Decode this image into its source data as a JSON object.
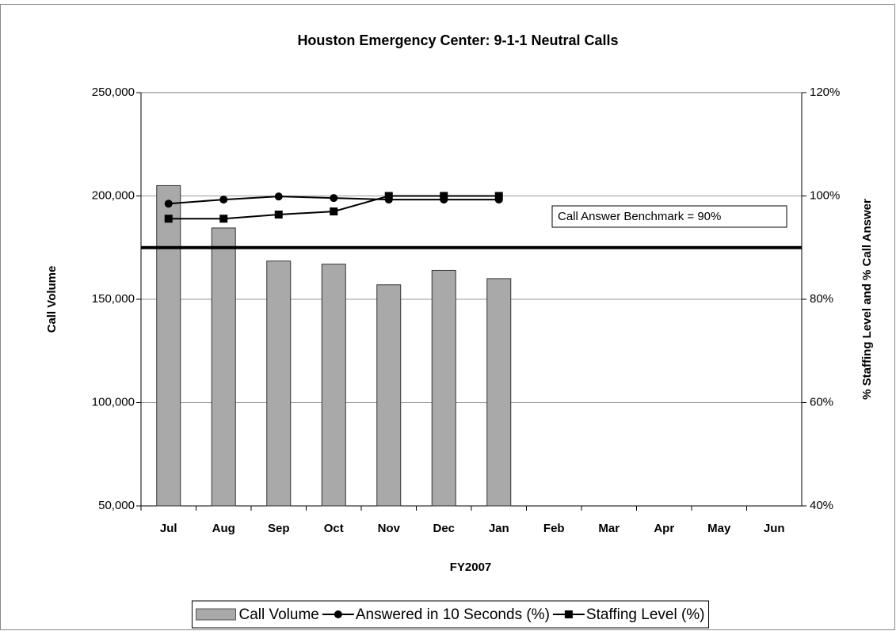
{
  "chart_data": {
    "type": "combo",
    "title": "Houston Emergency Center:  9-1-1 Neutral Calls",
    "x_label": "FY2007",
    "y_label": "Call Volume",
    "y2_label": "% Staffing Level and % Call Answer",
    "categories": [
      "Jul",
      "Aug",
      "Sep",
      "Oct",
      "Nov",
      "Dec",
      "Jan",
      "Feb",
      "Mar",
      "Apr",
      "May",
      "Jun"
    ],
    "series": [
      {
        "name": "Call Volume",
        "type": "bar",
        "color": "#a9a9a9",
        "values": [
          205000,
          184500,
          168500,
          167000,
          157000,
          164000,
          160000,
          null,
          null,
          null,
          null,
          null
        ]
      },
      {
        "name": "Answered in 10 Seconds (%)",
        "type": "line",
        "marker": "circle",
        "axis": "y2",
        "color": "#000000",
        "values": [
          98.5,
          99.3,
          99.9,
          99.6,
          99.3,
          99.3,
          99.3,
          null,
          null,
          null,
          null,
          null
        ]
      },
      {
        "name": "Staffing Level (%)",
        "type": "line",
        "marker": "square",
        "axis": "y2",
        "color": "#000000",
        "values": [
          95.6,
          95.6,
          96.4,
          97.0,
          100,
          100,
          100,
          null,
          null,
          null,
          null,
          null
        ]
      }
    ],
    "benchmark": {
      "label": "Call Answer Benchmark = 90%",
      "value": 90,
      "axis": "y2"
    },
    "ylim": [
      50000,
      250000
    ],
    "yticks": [
      {
        "value": 50000,
        "label": "50,000"
      },
      {
        "value": 100000,
        "label": "100,000"
      },
      {
        "value": 150000,
        "label": "150,000"
      },
      {
        "value": 200000,
        "label": "200,000"
      },
      {
        "value": 250000,
        "label": "250,000"
      }
    ],
    "y2lim": [
      40,
      120
    ],
    "y2ticks": [
      {
        "value": 40,
        "label": "40%"
      },
      {
        "value": 60,
        "label": "60%"
      },
      {
        "value": 80,
        "label": "80%"
      },
      {
        "value": 100,
        "label": "100%"
      },
      {
        "value": 120,
        "label": "120%"
      }
    ],
    "grid": true,
    "legend": "bottom"
  }
}
